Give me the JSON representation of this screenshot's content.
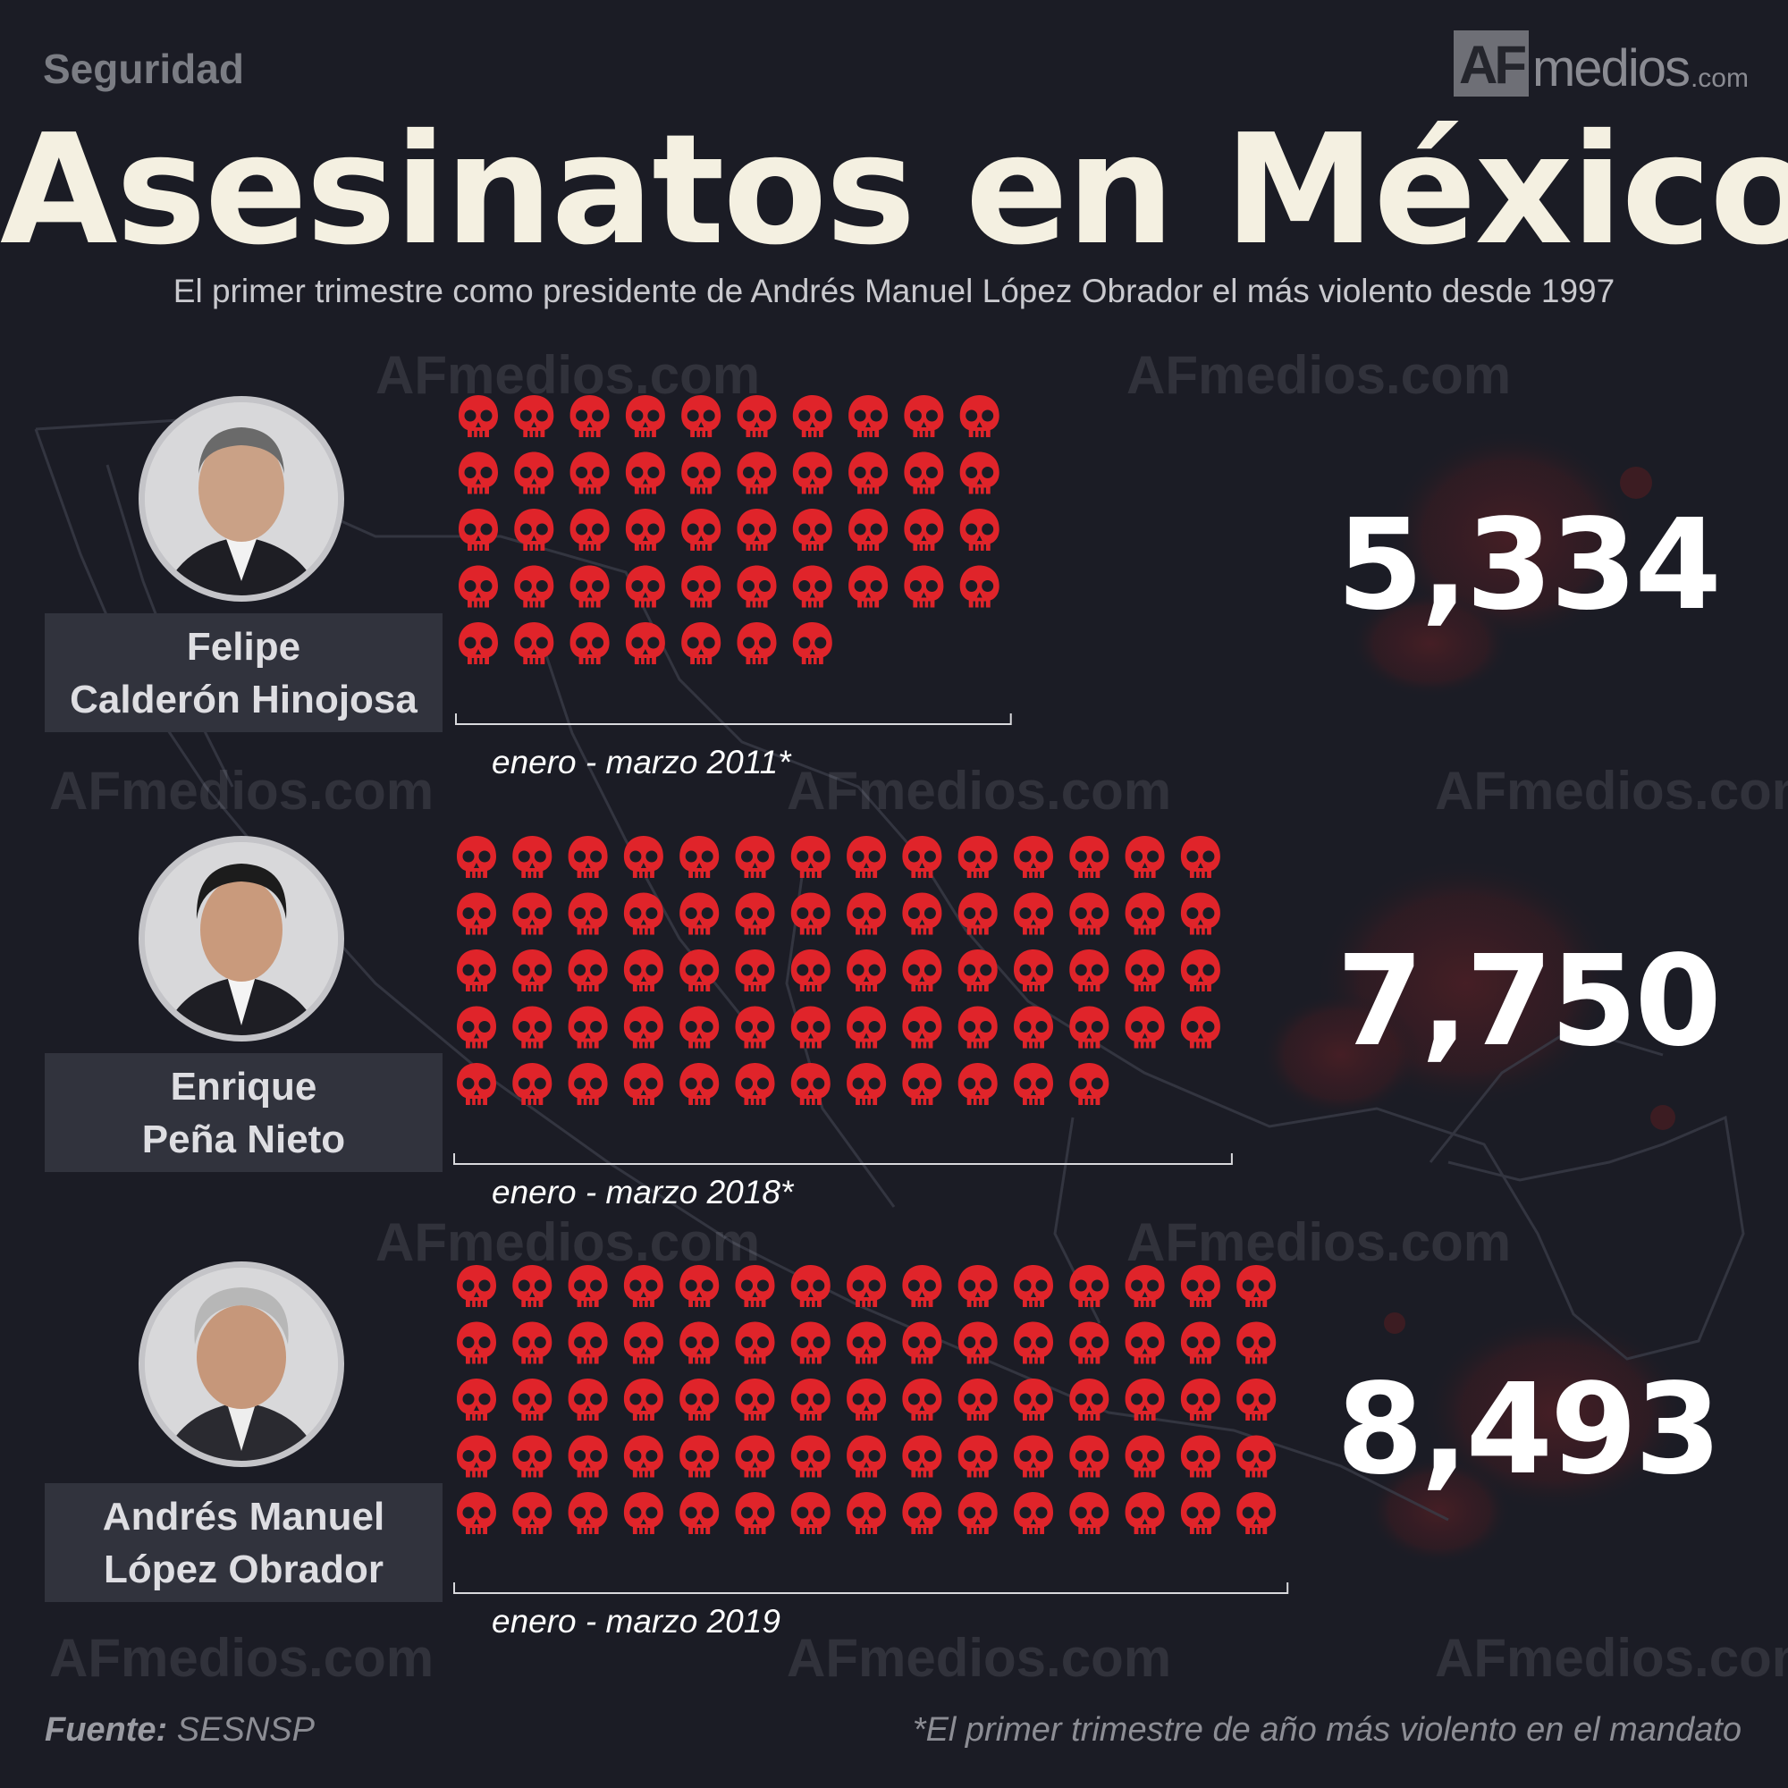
{
  "header": {
    "category": "Seguridad",
    "logo": {
      "af": "AF",
      "medios": "medios",
      "com": ".com"
    },
    "title": "Asesinatos en México",
    "subtitle": "El primer trimestre como presidente de Andrés Manuel López Obrador el más violento desde 1997"
  },
  "colors": {
    "background": "#1b1c25",
    "skull": "#e0242a",
    "accent_text": "#f4f0e1",
    "name_box": "#31333d"
  },
  "chart_data": {
    "type": "bar",
    "categories": [
      "Felipe Calderón Hinojosa",
      "Enrique Peña Nieto",
      "Andrés Manuel López Obrador"
    ],
    "values": [
      5334,
      7750,
      8493
    ],
    "periods": [
      "enero - marzo 2011*",
      "enero - marzo 2018*",
      "enero - marzo 2019"
    ],
    "unit_icon": "skull-icon"
  },
  "rows": [
    {
      "name_line1": "Felipe",
      "name_line2": "Calderón Hinojosa",
      "count": "5,334",
      "period": "enero - marzo 2011*",
      "icon": "skull-icon"
    },
    {
      "name_line1": "Enrique",
      "name_line2": "Peña Nieto",
      "count": "7,750",
      "period": "enero - marzo 2018*",
      "icon": "skull-icon"
    },
    {
      "name_line1": "Andrés Manuel",
      "name_line2": "López Obrador",
      "count": "8,493",
      "period": "enero - marzo 2019",
      "icon": "skull-icon"
    }
  ],
  "footer": {
    "source_label": "Fuente:",
    "source_value": "SESNSP",
    "note": "*El primer trimestre de año más violento en el mandato"
  }
}
